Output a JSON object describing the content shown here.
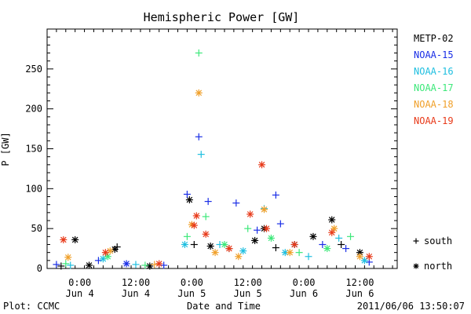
{
  "chart_data": {
    "type": "scatter",
    "title": "Hemispheric Power [GW]",
    "xlabel": "Date and Time",
    "ylabel": "P [GW]",
    "ylim": [
      0,
      300
    ],
    "xlim": [
      "2011-06-03 17:00",
      "2011-06-06 20:00"
    ],
    "y_ticks": [
      0,
      50,
      100,
      150,
      200,
      250
    ],
    "x_ticks": [
      {
        "line1": "0:00",
        "line2": "Jun 4",
        "t": "2011-06-04 00:00"
      },
      {
        "line1": "12:00",
        "line2": "Jun 4",
        "t": "2011-06-04 12:00"
      },
      {
        "line1": "0:00",
        "line2": "Jun 5",
        "t": "2011-06-05 00:00"
      },
      {
        "line1": "12:00",
        "line2": "Jun 5",
        "t": "2011-06-05 12:00"
      },
      {
        "line1": "0:00",
        "line2": "Jun 6",
        "t": "2011-06-06 00:00"
      },
      {
        "line1": "12:00",
        "line2": "Jun 6",
        "t": "2011-06-06 12:00"
      }
    ],
    "grid": false,
    "legend_position": "right",
    "marker_legend": [
      {
        "symbol": "+",
        "label": "south"
      },
      {
        "symbol": "*",
        "label": "north"
      }
    ],
    "series": [
      {
        "name": "METP-02",
        "color": "#000000",
        "points": [
          [
            "2011-06-03 20:00",
            3,
            "south"
          ],
          [
            "2011-06-04 02:00",
            4,
            "north"
          ],
          [
            "2011-06-03 23:00",
            36,
            "north"
          ],
          [
            "2011-06-04 07:30",
            24,
            "north"
          ],
          [
            "2011-06-04 08:00",
            27,
            "south"
          ],
          [
            "2011-06-04 15:00",
            3,
            "north"
          ],
          [
            "2011-06-04 23:30",
            86,
            "north"
          ],
          [
            "2011-06-05 00:30",
            30,
            "south"
          ],
          [
            "2011-06-05 04:00",
            28,
            "north"
          ],
          [
            "2011-06-05 08:00",
            25,
            "south"
          ],
          [
            "2011-06-05 13:30",
            35,
            "north"
          ],
          [
            "2011-06-05 15:30",
            50,
            "north"
          ],
          [
            "2011-06-05 18:00",
            26,
            "south"
          ],
          [
            "2011-06-05 22:00",
            30,
            "north"
          ],
          [
            "2011-06-06 02:00",
            40,
            "north"
          ],
          [
            "2011-06-06 06:00",
            61,
            "north"
          ],
          [
            "2011-06-06 08:00",
            30,
            "south"
          ],
          [
            "2011-06-06 12:00",
            20,
            "north"
          ]
        ]
      },
      {
        "name": "NOAA-15",
        "color": "#1a2ee6",
        "points": [
          [
            "2011-06-03 19:00",
            5,
            "south"
          ],
          [
            "2011-06-04 04:00",
            10,
            "south"
          ],
          [
            "2011-06-04 10:00",
            6,
            "north"
          ],
          [
            "2011-06-04 18:00",
            4,
            "south"
          ],
          [
            "2011-06-04 23:00",
            93,
            "south"
          ],
          [
            "2011-06-05 01:30",
            165,
            "south"
          ],
          [
            "2011-06-05 03:30",
            84,
            "south"
          ],
          [
            "2011-06-05 09:30",
            82,
            "south"
          ],
          [
            "2011-06-05 14:00",
            48,
            "south"
          ],
          [
            "2011-06-05 18:00",
            92,
            "south"
          ],
          [
            "2011-06-05 19:00",
            56,
            "south"
          ],
          [
            "2011-06-06 04:00",
            30,
            "south"
          ],
          [
            "2011-06-06 09:00",
            25,
            "south"
          ],
          [
            "2011-06-06 14:00",
            8,
            "south"
          ]
        ]
      },
      {
        "name": "NOAA-16",
        "color": "#1fbfe0",
        "points": [
          [
            "2011-06-03 22:00",
            4,
            "south"
          ],
          [
            "2011-06-04 05:00",
            12,
            "north"
          ],
          [
            "2011-06-04 12:00",
            5,
            "south"
          ],
          [
            "2011-06-04 22:30",
            30,
            "north"
          ],
          [
            "2011-06-05 02:00",
            143,
            "south"
          ],
          [
            "2011-06-05 06:00",
            30,
            "south"
          ],
          [
            "2011-06-05 11:00",
            22,
            "north"
          ],
          [
            "2011-06-05 15:30",
            75,
            "south"
          ],
          [
            "2011-06-05 20:00",
            20,
            "north"
          ],
          [
            "2011-06-06 01:00",
            15,
            "south"
          ],
          [
            "2011-06-06 07:30",
            38,
            "south"
          ],
          [
            "2011-06-06 13:00",
            10,
            "north"
          ]
        ]
      },
      {
        "name": "NOAA-17",
        "color": "#3de87a",
        "points": [
          [
            "2011-06-03 21:00",
            6,
            "south"
          ],
          [
            "2011-06-04 06:00",
            15,
            "north"
          ],
          [
            "2011-06-04 14:00",
            4,
            "south"
          ],
          [
            "2011-06-04 23:00",
            40,
            "south"
          ],
          [
            "2011-06-05 01:30",
            270,
            "south"
          ],
          [
            "2011-06-05 03:00",
            65,
            "south"
          ],
          [
            "2011-06-05 07:00",
            30,
            "north"
          ],
          [
            "2011-06-05 12:00",
            50,
            "south"
          ],
          [
            "2011-06-05 17:00",
            38,
            "north"
          ],
          [
            "2011-06-05 23:00",
            20,
            "south"
          ],
          [
            "2011-06-06 05:00",
            25,
            "north"
          ],
          [
            "2011-06-06 10:00",
            40,
            "south"
          ]
        ]
      },
      {
        "name": "NOAA-18",
        "color": "#f0a02a",
        "points": [
          [
            "2011-06-03 21:30",
            14,
            "north"
          ],
          [
            "2011-06-04 06:30",
            22,
            "north"
          ],
          [
            "2011-06-04 16:00",
            5,
            "south"
          ],
          [
            "2011-06-05 00:00",
            55,
            "north"
          ],
          [
            "2011-06-05 01:30",
            220,
            "north"
          ],
          [
            "2011-06-05 05:00",
            20,
            "north"
          ],
          [
            "2011-06-05 10:00",
            15,
            "north"
          ],
          [
            "2011-06-05 15:30",
            74,
            "north"
          ],
          [
            "2011-06-05 21:00",
            20,
            "north"
          ],
          [
            "2011-06-06 06:30",
            50,
            "north"
          ],
          [
            "2011-06-06 12:00",
            15,
            "north"
          ]
        ]
      },
      {
        "name": "NOAA-19",
        "color": "#e83a1a",
        "points": [
          [
            "2011-06-03 20:30",
            36,
            "north"
          ],
          [
            "2011-06-04 05:30",
            20,
            "north"
          ],
          [
            "2011-06-04 17:00",
            6,
            "north"
          ],
          [
            "2011-06-05 00:30",
            54,
            "north"
          ],
          [
            "2011-06-05 01:00",
            66,
            "north"
          ],
          [
            "2011-06-05 03:00",
            43,
            "north"
          ],
          [
            "2011-06-05 08:00",
            25,
            "north"
          ],
          [
            "2011-06-05 12:30",
            68,
            "north"
          ],
          [
            "2011-06-05 15:00",
            130,
            "north"
          ],
          [
            "2011-06-05 16:00",
            50,
            "north"
          ],
          [
            "2011-06-05 22:00",
            30,
            "north"
          ],
          [
            "2011-06-06 06:00",
            45,
            "north"
          ],
          [
            "2011-06-06 14:00",
            15,
            "north"
          ]
        ]
      }
    ]
  },
  "footer": {
    "plot_label": "Plot: CCMC",
    "timestamp": "2011/06/06 13:50:07"
  }
}
